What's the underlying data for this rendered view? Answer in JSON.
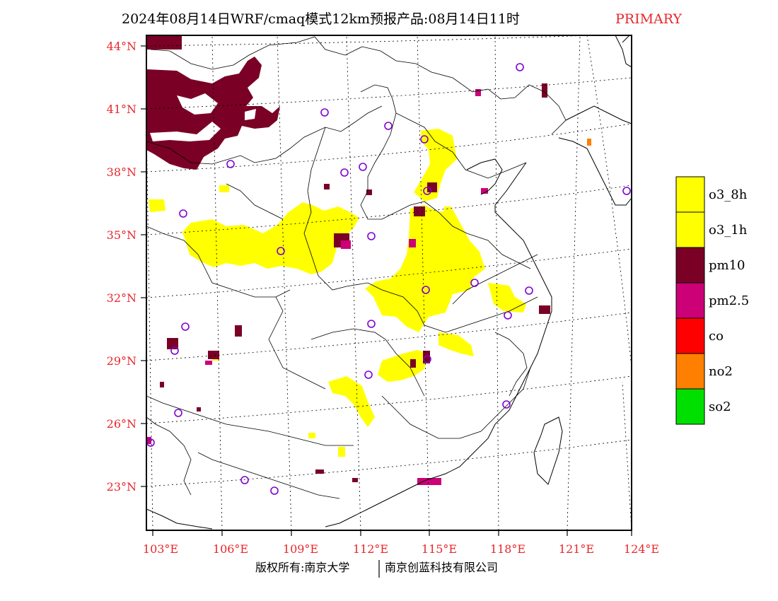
{
  "title": {
    "main": "2024年08月14日WRF/cmaq模式12km预报产品:08月14日11时",
    "tag": "PRIMARY"
  },
  "map": {
    "lat_labels": [
      "44°N",
      "41°N",
      "38°N",
      "35°N",
      "32°N",
      "29°N",
      "26°N",
      "23°N"
    ],
    "lon_labels": [
      "103°E",
      "106°E",
      "109°E",
      "112°E",
      "115°E",
      "118°E",
      "121°E",
      "124°E"
    ]
  },
  "legend": {
    "items": [
      {
        "label": "o3_8h",
        "color": "#ffff00"
      },
      {
        "label": "o3_1h",
        "color": "#ffff00"
      },
      {
        "label": "pm10",
        "color": "#7a0026"
      },
      {
        "label": "pm2.5",
        "color": "#cc0077"
      },
      {
        "label": "co",
        "color": "#ff0000"
      },
      {
        "label": "no2",
        "color": "#ff7f00"
      },
      {
        "label": "so2",
        "color": "#00e000"
      }
    ]
  },
  "footer": {
    "left": "版权所有:南京大学",
    "right": "南京创蓝科技有限公司"
  }
}
